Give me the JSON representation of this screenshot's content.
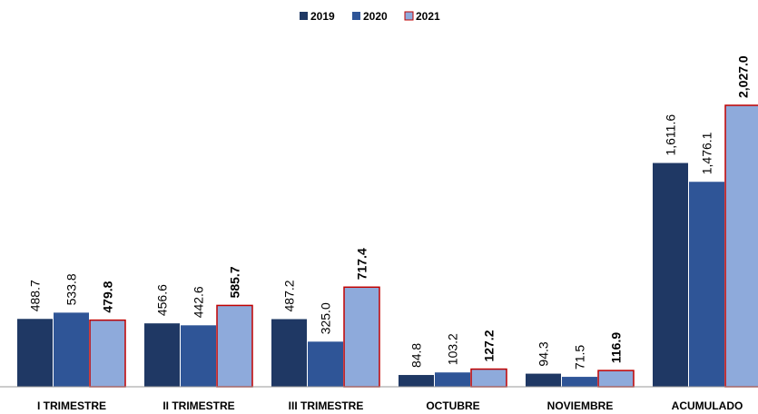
{
  "chart_data": {
    "type": "bar",
    "categories": [
      "I TRIMESTRE",
      "II TRIMESTRE",
      "III TRIMESTRE",
      "OCTUBRE",
      "NOVIEMBRE",
      "ACUMULADO"
    ],
    "series": [
      {
        "name": "2019",
        "color": "#1f3864",
        "values": [
          488.7,
          456.6,
          487.2,
          84.8,
          94.3,
          1611.6
        ],
        "value_labels": [
          "488.7",
          "456.6",
          "487.2",
          "84.8",
          "94.3",
          "1,611.6"
        ]
      },
      {
        "name": "2020",
        "color": "#2f5597",
        "values": [
          533.8,
          442.6,
          325.0,
          103.2,
          71.5,
          1476.1
        ],
        "value_labels": [
          "533.8",
          "442.6",
          "325.0",
          "103.2",
          "71.5",
          "1,476.1"
        ]
      },
      {
        "name": "2021",
        "color": "#8eaadb",
        "values": [
          479.8,
          585.7,
          717.4,
          127.2,
          116.9,
          2027.0
        ],
        "value_labels": [
          "479.8",
          "585.7",
          "717.4",
          "127.2",
          "116.9",
          "2,027.0"
        ]
      }
    ]
  }
}
